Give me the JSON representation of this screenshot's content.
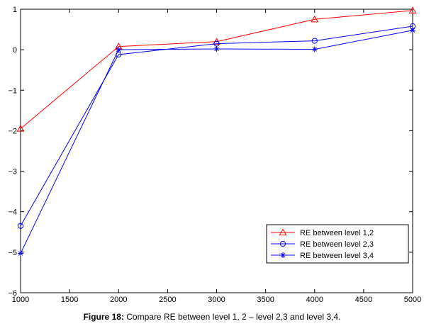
{
  "chart_data": {
    "type": "line",
    "x": [
      1000,
      2000,
      3000,
      4000,
      5000
    ],
    "xlim": [
      1000,
      5000
    ],
    "ylim": [
      -6,
      1
    ],
    "xticks": [
      1000,
      1500,
      2000,
      2500,
      3000,
      3500,
      4000,
      4500,
      5000
    ],
    "yticks": [
      1,
      0,
      -1,
      -2,
      -3,
      -4,
      -5,
      -6
    ],
    "xtick_labels": [
      "1000",
      "1500",
      "2000",
      "2500",
      "3000",
      "3500",
      "4000",
      "4500",
      "5000"
    ],
    "ytick_labels": [
      "1",
      "0",
      "−1",
      "−2",
      "−3",
      "−4",
      "−5",
      "−6"
    ],
    "grid": false,
    "legend_position": "bottom-right",
    "series": [
      {
        "name": "RE between level 1,2",
        "color": "#ff0000",
        "marker": "triangle",
        "values": [
          -1.95,
          0.08,
          0.2,
          0.75,
          0.97
        ]
      },
      {
        "name": "RE between level 2,3",
        "color": "#0000ff",
        "marker": "circle",
        "values": [
          -4.35,
          -0.12,
          0.15,
          0.22,
          0.58
        ]
      },
      {
        "name": "RE between level 3,4",
        "color": "#0000ff",
        "marker": "star",
        "values": [
          -5.03,
          0.0,
          0.02,
          0.01,
          0.48
        ]
      }
    ]
  },
  "caption": {
    "label": "Figure 18:",
    "text": " Compare RE between level 1, 2 – level 2,3 and level 3,4."
  }
}
